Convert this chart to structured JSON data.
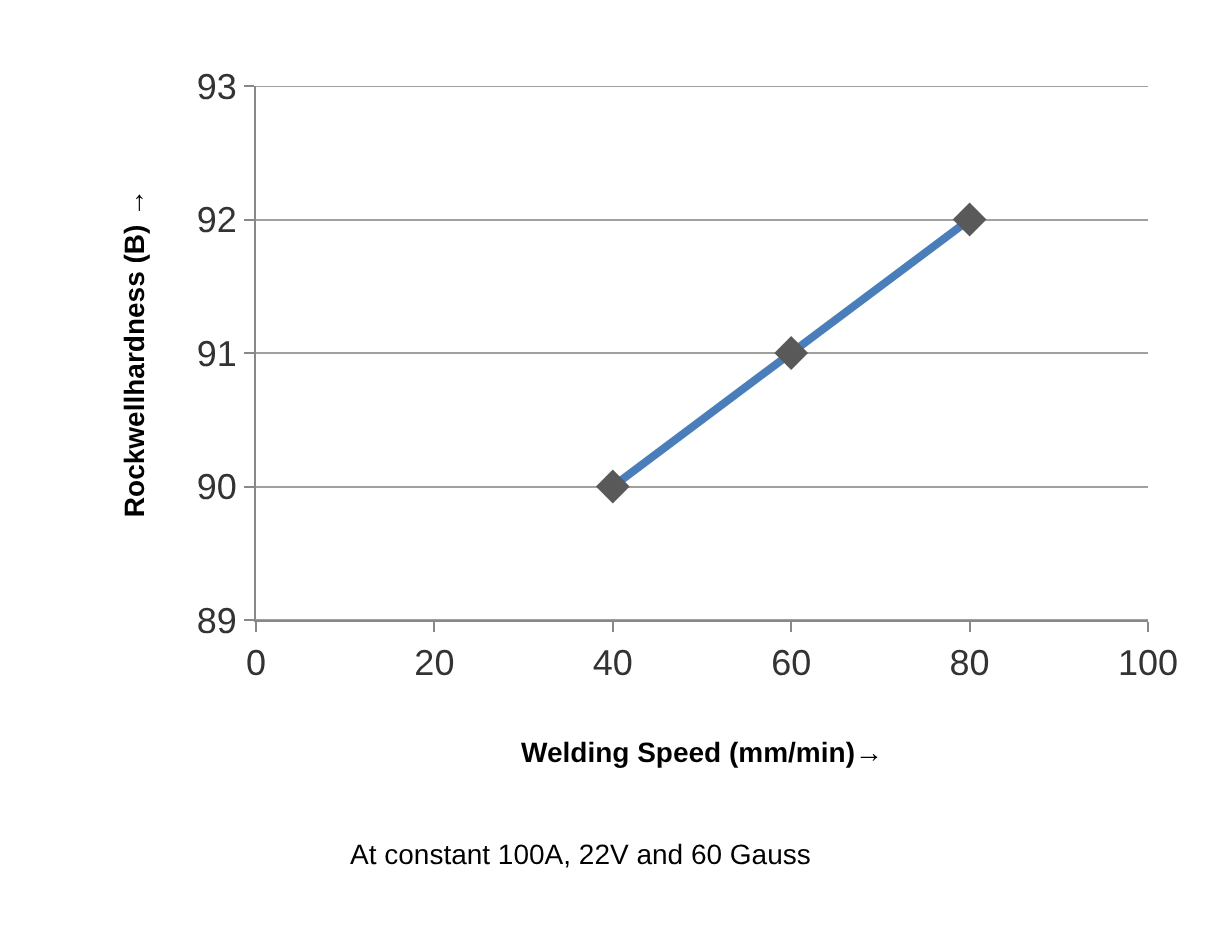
{
  "chart_data": {
    "type": "line",
    "x": [
      40,
      60,
      80
    ],
    "series": [
      {
        "color": "#4a7ebb",
        "values": [
          90,
          91,
          92
        ]
      }
    ],
    "xlabel": "Welding Speed (mm/min)→",
    "ylabel": "Rockwellhardness (B) →",
    "annotations": [
      "At constant 100A, 22V and 60 Gauss"
    ],
    "xlim": [
      0,
      100
    ],
    "xticks": [
      0,
      20,
      40,
      60,
      80,
      100
    ],
    "ylim": [
      89,
      93
    ],
    "yticks": [
      89,
      90,
      91,
      92,
      93
    ],
    "grid": "y",
    "marker": "diamond",
    "line_style": "solid"
  }
}
